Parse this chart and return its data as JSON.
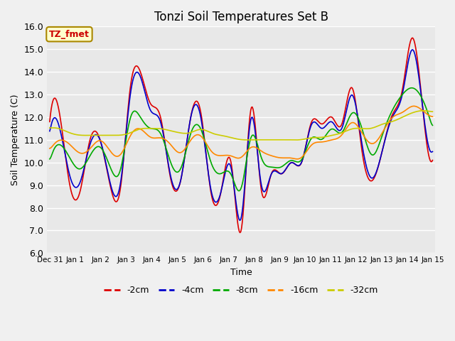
{
  "title": "Tonzi Soil Temperatures Set B",
  "xlabel": "Time",
  "ylabel": "Soil Temperature (C)",
  "ylim": [
    6.0,
    16.0
  ],
  "yticks": [
    6.0,
    7.0,
    8.0,
    9.0,
    10.0,
    11.0,
    12.0,
    13.0,
    14.0,
    15.0,
    16.0
  ],
  "background_color": "#f0f0f0",
  "plot_bg_color": "#e8e8e8",
  "grid_color": "#ffffff",
  "annotation_text": "TZ_fmet",
  "annotation_color": "#cc0000",
  "annotation_bg": "#ffffcc",
  "annotation_border": "#aa8800",
  "legend_entries": [
    "-2cm",
    "-4cm",
    "-8cm",
    "-16cm",
    "-32cm"
  ],
  "line_colors": [
    "#dd0000",
    "#0000cc",
    "#00aa00",
    "#ff8800",
    "#cccc00"
  ],
  "line_widths": [
    1.2,
    1.2,
    1.2,
    1.2,
    1.2
  ],
  "xtick_labels": [
    "Dec 31",
    "Jan 1",
    "Jan 2",
    "Jan 3",
    "Jan 4",
    "Jan 5",
    "Jan 6",
    "Jan 7",
    "Jan 8",
    "Jan 9",
    "Jan 10",
    "Jan 11",
    "Jan 12",
    "Jan 13",
    "Jan 14",
    "Jan 15"
  ],
  "figsize": [
    6.4,
    4.8
  ],
  "dpi": 100,
  "y2cm_peaks": [
    11.8,
    12.1,
    9.0,
    8.7,
    11.0,
    11.0,
    9.0,
    8.8,
    13.3,
    14.0,
    12.6,
    12.0,
    9.3,
    9.2,
    12.0,
    12.2,
    8.7,
    8.7,
    10.0,
    7.0,
    12.4,
    8.8,
    9.5,
    9.5,
    10.0,
    10.0,
    11.8,
    11.7,
    12.0,
    11.7,
    13.3,
    10.5,
    9.2,
    10.5,
    12.1,
    13.2,
    15.5,
    12.5,
    10.1
  ],
  "y4cm_peaks": [
    11.3,
    11.5,
    9.4,
    9.1,
    10.8,
    11.0,
    9.1,
    9.0,
    13.0,
    13.8,
    12.3,
    11.8,
    9.4,
    9.2,
    12.0,
    12.0,
    8.8,
    8.7,
    9.8,
    7.5,
    12.0,
    9.0,
    9.5,
    9.5,
    10.0,
    10.0,
    11.7,
    11.5,
    11.8,
    11.5,
    13.0,
    10.8,
    9.3,
    10.5,
    12.0,
    13.0,
    15.0,
    12.5,
    10.5
  ],
  "y8cm_peaks": [
    10.0,
    10.8,
    10.2,
    9.7,
    10.3,
    10.7,
    9.8,
    9.6,
    12.0,
    12.0,
    11.5,
    11.3,
    10.0,
    9.7,
    11.3,
    11.5,
    10.0,
    9.5,
    9.5,
    8.8,
    11.2,
    10.2,
    9.8,
    9.8,
    10.1,
    10.1,
    11.1,
    11.0,
    11.5,
    11.3,
    12.2,
    11.5,
    10.3,
    11.2,
    12.3,
    13.0,
    13.3,
    12.8,
    11.5
  ],
  "y16cm_peaks": [
    10.5,
    11.0,
    10.8,
    10.4,
    10.6,
    11.0,
    10.5,
    10.3,
    11.2,
    11.5,
    11.1,
    11.1,
    10.8,
    10.4,
    11.0,
    11.2,
    10.5,
    10.3,
    10.3,
    10.2,
    10.7,
    10.5,
    10.3,
    10.2,
    10.2,
    10.2,
    10.8,
    10.9,
    11.0,
    11.2,
    11.8,
    11.3,
    10.8,
    11.3,
    12.0,
    12.2,
    12.5,
    12.3,
    12.0
  ],
  "y32cm_peaks": [
    11.5,
    11.5,
    11.3,
    11.2,
    11.2,
    11.2,
    11.2,
    11.2,
    11.3,
    11.5,
    11.5,
    11.5,
    11.4,
    11.3,
    11.3,
    11.5,
    11.3,
    11.2,
    11.1,
    11.0,
    11.0,
    11.0,
    11.0,
    11.0,
    11.0,
    11.0,
    11.1,
    11.1,
    11.2,
    11.3,
    11.5,
    11.5,
    11.5,
    11.7,
    11.8,
    12.0,
    12.2,
    12.3,
    12.2
  ]
}
